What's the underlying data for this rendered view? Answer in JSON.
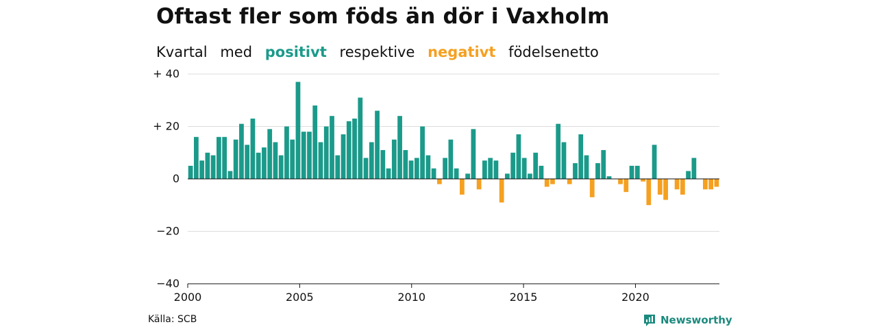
{
  "title": "Oftast fler som föds än dör i Vaxholm",
  "subtitle": {
    "w1": "Kvartal",
    "w2": "med",
    "positive_word": "positivt",
    "w3": "respektive",
    "negative_word": "negativt",
    "w4": "födelsenetto"
  },
  "source": "Källa: SCB",
  "brand": "Newsworthy",
  "colors": {
    "positive": "#1b9a8a",
    "negative": "#f5a020",
    "grid": "#dddddd",
    "axis": "#111111"
  },
  "chart_data": {
    "type": "bar",
    "title": "Oftast fler som föds än dör i Vaxholm",
    "ylim": [
      -40,
      40
    ],
    "y_ticks": [
      {
        "value": 40,
        "label": "+ 40"
      },
      {
        "value": 20,
        "label": "+ 20"
      },
      {
        "value": 0,
        "label": "0"
      },
      {
        "value": -20,
        "label": "−20"
      },
      {
        "value": -40,
        "label": "−40"
      }
    ],
    "x_start": 2000,
    "x_end": 2023.75,
    "x_ticks": [
      2000,
      2005,
      2010,
      2015,
      2020
    ],
    "grid": true,
    "series": [
      {
        "values": [
          5,
          16,
          7,
          10,
          9,
          16,
          16,
          3,
          15,
          21,
          13,
          23,
          10,
          12,
          19,
          14,
          9,
          20,
          15,
          37,
          18,
          18,
          28,
          14,
          20,
          24,
          9,
          17,
          22,
          23,
          31,
          8,
          14,
          26,
          11,
          4,
          15,
          24,
          11,
          7,
          8,
          20,
          9,
          4,
          -2,
          8,
          15,
          4,
          -6,
          2,
          19,
          -4,
          7,
          8,
          7,
          -9,
          2,
          10,
          17,
          8,
          2,
          10,
          5,
          -3,
          -2,
          21,
          14,
          -2,
          6,
          17,
          9,
          -7,
          6,
          11,
          1,
          0,
          -2,
          -5,
          5,
          5,
          -1,
          -10,
          13,
          -6,
          -8,
          0,
          -4,
          -6,
          3,
          8,
          0,
          -4,
          -4,
          -3
        ]
      }
    ]
  }
}
